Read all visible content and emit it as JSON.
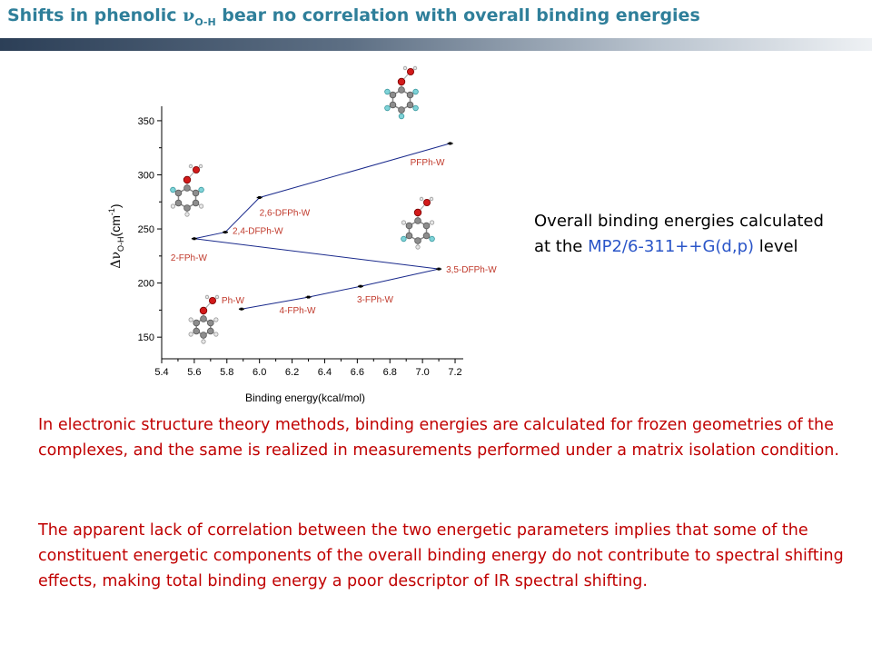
{
  "slide": {
    "title_prefix": "Shifts in phenolic ",
    "title_symbol": "ν",
    "title_subscript": "O-H",
    "title_suffix": " bear no correlation with overall binding energies",
    "note_line1": "Overall binding energies calculated",
    "note_line2_prefix": "at the ",
    "note_method": "MP2/6-311++G(d,p)",
    "note_line2_suffix": " level",
    "paragraph1": "In electronic structure theory methods, binding energies are calculated for frozen geometries of the complexes, and the same is realized in measurements performed under a matrix isolation condition.",
    "paragraph2": "The apparent lack of correlation between the two energetic parameters implies that some of the constituent energetic components of the overall binding energy do not contribute to spectral shifting effects, making total binding energy a poor descriptor of IR spectral shifting."
  },
  "colors": {
    "title": "#2f7f9a",
    "point_label": "#c0392b",
    "body_text": "#c00000",
    "method": "#2a55c8",
    "series_line": "#1a2a8c"
  },
  "chart_data": {
    "type": "line",
    "xlabel": "Binding energy(kcal/mol)",
    "ylabel_symbol": "Δν",
    "ylabel_subscript": "O-H",
    "ylabel_unit": "(cm",
    "ylabel_exp": "-1",
    "ylabel_close": ")",
    "xlim": [
      5.4,
      7.25
    ],
    "ylim": [
      130,
      360
    ],
    "xticks": [
      "5.4",
      "5.6",
      "5.8",
      "6.0",
      "6.2",
      "6.4",
      "6.6",
      "6.8",
      "7.0",
      "7.2"
    ],
    "yticks": [
      "150",
      "200",
      "250",
      "300",
      "350"
    ],
    "grid": false,
    "points": [
      {
        "label": "Ph-W",
        "x": 5.89,
        "y": 176
      },
      {
        "label": "4-FPh-W",
        "x": 6.3,
        "y": 187
      },
      {
        "label": "3-FPh-W",
        "x": 6.62,
        "y": 197
      },
      {
        "label": "3,5-DFPh-W",
        "x": 7.1,
        "y": 213
      },
      {
        "label": "2-FPh-W",
        "x": 5.6,
        "y": 241
      },
      {
        "label": "2,4-DFPh-W",
        "x": 5.79,
        "y": 247
      },
      {
        "label": "2,6-DFPh-W",
        "x": 6.0,
        "y": 279
      },
      {
        "label": "PFPh-W",
        "x": 7.17,
        "y": 329
      }
    ],
    "line_order": [
      "Ph-W",
      "4-FPh-W",
      "3-FPh-W",
      "3,5-DFPh-W",
      "2-FPh-W",
      "2,4-DFPh-W",
      "2,6-DFPh-W",
      "PFPh-W"
    ]
  }
}
